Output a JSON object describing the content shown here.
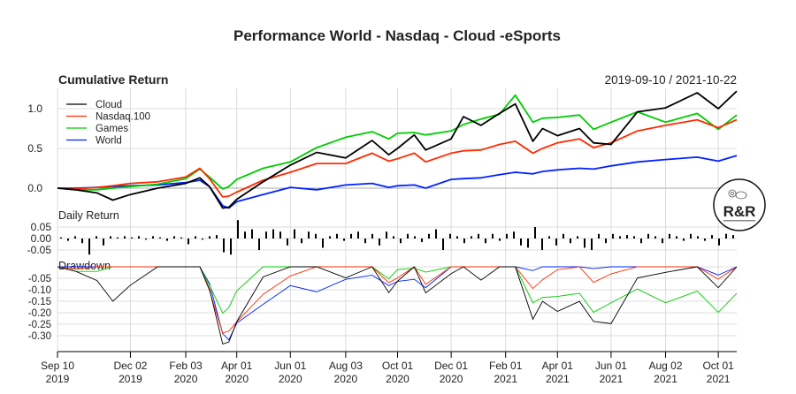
{
  "chart_data": {
    "type": "line",
    "title": "Performance World - Nasdaq - Cloud -eSports",
    "date_range": "2019-09-10 / 2021-10-22",
    "grid": true,
    "legend_placement": "top-left",
    "panels": {
      "cumulative": {
        "title": "Cumulative Return",
        "yticks": [
          {
            "v": 1.0,
            "label": "1.0"
          },
          {
            "v": 0.5,
            "label": "0.5"
          },
          {
            "v": 0.0,
            "label": "0.0"
          }
        ],
        "ylim": [
          -0.28,
          1.25
        ]
      },
      "daily": {
        "title": "Daily Return",
        "yticks": [
          {
            "v": 0.05,
            "label": "0.05"
          },
          {
            "v": 0.0,
            "label": "0.00"
          },
          {
            "v": -0.05,
            "label": "-0.05"
          }
        ],
        "ylim": [
          -0.08,
          0.1
        ]
      },
      "drawdown": {
        "title": "Drawdown",
        "yticks": [
          {
            "v": -0.05,
            "label": "-0.05"
          },
          {
            "v": -0.1,
            "label": "-0.10"
          },
          {
            "v": -0.15,
            "label": "-0.15"
          },
          {
            "v": -0.2,
            "label": "-0.20"
          },
          {
            "v": -0.25,
            "label": "-0.25"
          },
          {
            "v": -0.3,
            "label": "-0.30"
          }
        ],
        "ylim": [
          -0.35,
          0.0
        ]
      }
    },
    "xticks": [
      {
        "date": "2019-09-10",
        "l1": "Sep 10",
        "l2": "2019"
      },
      {
        "date": "2019-12-02",
        "l1": "Dec 02",
        "l2": "2019"
      },
      {
        "date": "2020-02-03",
        "l1": "Feb 03",
        "l2": "2020"
      },
      {
        "date": "2020-04-01",
        "l1": "Apr 01",
        "l2": "2020"
      },
      {
        "date": "2020-06-01",
        "l1": "Jun 01",
        "l2": "2020"
      },
      {
        "date": "2020-08-03",
        "l1": "Aug 03",
        "l2": "2020"
      },
      {
        "date": "2020-10-01",
        "l1": "Oct 01",
        "l2": "2020"
      },
      {
        "date": "2020-12-01",
        "l1": "Dec 01",
        "l2": "2020"
      },
      {
        "date": "2021-02-01",
        "l1": "Feb 01",
        "l2": "2021"
      },
      {
        "date": "2021-04-01",
        "l1": "Apr 01",
        "l2": "2021"
      },
      {
        "date": "2021-06-01",
        "l1": "Jun 01",
        "l2": "2021"
      },
      {
        "date": "2021-08-02",
        "l1": "Aug 02",
        "l2": "2021"
      },
      {
        "date": "2021-10-01",
        "l1": "Oct 01",
        "l2": "2021"
      }
    ],
    "x_start": "2019-09-10",
    "x_end": "2021-10-22",
    "dates": [
      "2019-09-10",
      "2019-10-01",
      "2019-10-25",
      "2019-11-12",
      "2019-12-02",
      "2020-01-02",
      "2020-02-03",
      "2020-02-19",
      "2020-03-01",
      "2020-03-16",
      "2020-03-23",
      "2020-04-01",
      "2020-05-01",
      "2020-06-01",
      "2020-07-01",
      "2020-08-03",
      "2020-09-02",
      "2020-09-21",
      "2020-10-01",
      "2020-10-20",
      "2020-11-02",
      "2020-12-01",
      "2020-12-15",
      "2021-01-04",
      "2021-01-25",
      "2021-02-12",
      "2021-03-04",
      "2021-03-15",
      "2021-04-01",
      "2021-04-26",
      "2021-05-12",
      "2021-06-01",
      "2021-07-01",
      "2021-08-02",
      "2021-09-07",
      "2021-10-01",
      "2021-10-22"
    ],
    "series": [
      {
        "name": "Cloud",
        "color": "#000000",
        "values": [
          0,
          -0.02,
          -0.06,
          -0.15,
          -0.08,
          0.0,
          0.06,
          0.13,
          0.02,
          -0.25,
          -0.24,
          -0.14,
          0.08,
          0.29,
          0.45,
          0.38,
          0.6,
          0.42,
          0.5,
          0.67,
          0.48,
          0.62,
          0.9,
          0.79,
          0.94,
          1.06,
          0.59,
          0.75,
          0.66,
          0.75,
          0.57,
          0.55,
          0.96,
          1.01,
          1.2,
          1.0,
          1.22
        ]
      },
      {
        "name": "Nasdaq.100",
        "color": "#ff2a00",
        "values": [
          0,
          -0.01,
          0.01,
          0.03,
          0.06,
          0.08,
          0.14,
          0.25,
          0.12,
          -0.11,
          -0.1,
          -0.05,
          0.1,
          0.2,
          0.31,
          0.31,
          0.44,
          0.34,
          0.37,
          0.44,
          0.33,
          0.44,
          0.47,
          0.48,
          0.55,
          0.59,
          0.44,
          0.5,
          0.57,
          0.62,
          0.51,
          0.57,
          0.72,
          0.79,
          0.86,
          0.76,
          0.86
        ]
      },
      {
        "name": "Games",
        "color": "#00cc00",
        "values": [
          0,
          -0.02,
          -0.02,
          0.0,
          0.02,
          0.05,
          0.12,
          0.24,
          0.14,
          -0.01,
          0.02,
          0.11,
          0.25,
          0.33,
          0.51,
          0.64,
          0.71,
          0.62,
          0.69,
          0.7,
          0.67,
          0.72,
          0.8,
          0.87,
          0.93,
          1.17,
          0.83,
          0.88,
          0.89,
          0.92,
          0.74,
          0.83,
          0.96,
          0.83,
          0.94,
          0.74,
          0.92
        ]
      },
      {
        "name": "World",
        "color": "#0022ff",
        "values": [
          0,
          0.0,
          0.01,
          0.02,
          0.03,
          0.04,
          0.07,
          0.1,
          0.02,
          -0.22,
          -0.25,
          -0.17,
          -0.08,
          0.01,
          -0.02,
          0.04,
          0.06,
          0.01,
          0.03,
          0.04,
          0.0,
          0.11,
          0.12,
          0.13,
          0.17,
          0.2,
          0.18,
          0.21,
          0.23,
          0.25,
          0.24,
          0.28,
          0.33,
          0.36,
          0.39,
          0.34,
          0.41
        ]
      }
    ],
    "cloud_daily_returns": [
      0.005,
      -0.01,
      0.01,
      -0.02,
      -0.07,
      0.01,
      -0.03,
      0.01,
      0.005,
      0.01,
      0.005,
      0.01,
      -0.005,
      0.01,
      0.005,
      -0.01,
      0.01,
      0.005,
      -0.025,
      0.01,
      -0.005,
      0.01,
      0.015,
      -0.06,
      -0.07,
      0.08,
      0.03,
      0.04,
      -0.05,
      0.03,
      0.04,
      0.03,
      -0.03,
      0.04,
      -0.02,
      0.03,
      0.02,
      -0.04,
      0.01,
      0.02,
      -0.01,
      0.02,
      0.03,
      -0.02,
      0.02,
      -0.03,
      0.03,
      0.01,
      -0.02,
      0.02,
      0.01,
      -0.015,
      0.02,
      0.04,
      -0.05,
      0.02,
      0.01,
      -0.02,
      0.01,
      0.02,
      -0.02,
      0.02,
      -0.01,
      0.02,
      0.03,
      -0.03,
      -0.04,
      0.05,
      -0.05,
      0.01,
      -0.03,
      0.02,
      -0.02,
      0.01,
      -0.04,
      -0.05,
      0.02,
      -0.02,
      0.02,
      0.01,
      0.015,
      0.01,
      -0.02,
      0.02,
      0.01,
      -0.02,
      0.02,
      0.01,
      -0.01,
      0.02,
      0.01,
      -0.01,
      0.015,
      -0.03,
      0.02,
      0.015
    ]
  },
  "logo": {
    "text": "R&R",
    "icon": "gear-piggybank-icon"
  }
}
